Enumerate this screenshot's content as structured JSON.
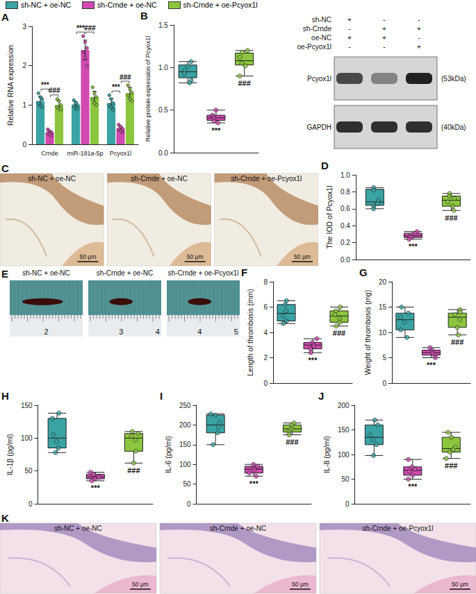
{
  "legend": [
    {
      "name": "sh-NC + oe-NC",
      "color": "#3aa3a3"
    },
    {
      "name": "sh-Crnde + oe-NC",
      "color": "#d04ab0"
    },
    {
      "name": "sh-Crnde + oe-Pcyox1l",
      "color": "#8cc63f"
    }
  ],
  "chart_data": [
    {
      "panel": "A",
      "type": "bar",
      "y_label": "Relative RNA expression",
      "categories": [
        "Crnde",
        "miR-181a-5p",
        "Pcyox1l"
      ],
      "ylim": [
        0,
        3
      ],
      "yticks": [
        0,
        1,
        2,
        3
      ],
      "grid": false,
      "series": [
        {
          "name": "sh-NC + oe-NC",
          "color": "#3aa3a3",
          "values": [
            1.1,
            1.0,
            1.05
          ],
          "errors": [
            0.12,
            0.08,
            0.12
          ],
          "points": [
            [
              1.3,
              1.2,
              1.15,
              1.05,
              0.98,
              0.95
            ],
            [
              1.12,
              1.05,
              1.0,
              0.98,
              0.92,
              0.9
            ],
            [
              1.25,
              1.15,
              1.05,
              1.0,
              0.95,
              0.88
            ]
          ]
        },
        {
          "name": "sh-Crnde + oe-NC",
          "color": "#d04ab0",
          "values": [
            0.3,
            2.4,
            0.4
          ],
          "errors": [
            0.05,
            0.25,
            0.06
          ],
          "points": [
            [
              0.38,
              0.33,
              0.3,
              0.28,
              0.25,
              0.22
            ],
            [
              2.75,
              2.6,
              2.45,
              2.35,
              2.2,
              2.0
            ],
            [
              0.5,
              0.45,
              0.4,
              0.38,
              0.35,
              0.3
            ]
          ]
        },
        {
          "name": "sh-Crnde + oe-Pcyox1l",
          "color": "#8cc63f",
          "values": [
            1.0,
            1.2,
            1.3
          ],
          "errors": [
            0.1,
            0.15,
            0.15
          ],
          "points": [
            [
              1.15,
              1.1,
              1.0,
              0.95,
              0.9,
              0.88
            ],
            [
              1.45,
              1.3,
              1.2,
              1.15,
              1.05,
              1.0
            ],
            [
              1.5,
              1.4,
              1.32,
              1.25,
              1.15,
              1.1
            ]
          ]
        }
      ],
      "annotations": [
        {
          "text": "***",
          "category": "Crnde",
          "between": [
            "sh-NC + oe-NC",
            "sh-Crnde + oe-NC"
          ]
        },
        {
          "text": "###",
          "category": "Crnde",
          "between": [
            "sh-Crnde + oe-NC",
            "sh-Crnde + oe-Pcyox1l"
          ]
        },
        {
          "text": "***",
          "category": "miR-181a-5p",
          "between": [
            "sh-NC + oe-NC",
            "sh-Crnde + oe-NC"
          ]
        },
        {
          "text": "###",
          "category": "miR-181a-5p",
          "between": [
            "sh-Crnde + oe-NC",
            "sh-Crnde + oe-Pcyox1l"
          ]
        },
        {
          "text": "***",
          "category": "Pcyox1l",
          "between": [
            "sh-NC + oe-NC",
            "sh-Crnde + oe-NC"
          ]
        },
        {
          "text": "###",
          "category": "Pcyox1l",
          "between": [
            "sh-Crnde + oe-NC",
            "sh-Crnde + oe-Pcyox1l"
          ]
        }
      ]
    },
    {
      "panel": "B",
      "type": "boxplot",
      "y_label": "Relative protein expression of Pcyox1l",
      "ylim": [
        0,
        1.5
      ],
      "yticks": [
        {
          "value": 0,
          "label": "0.0"
        },
        0.5,
        {
          "value": 1,
          "label": "1.0"
        },
        1.5
      ],
      "grid": false,
      "tick_labels": "y",
      "series": [
        {
          "name": "sh-NC + oe-NC",
          "color": "#3aa3a3",
          "box": [
            0.82,
            0.88,
            0.95,
            1.03,
            1.07
          ],
          "points": [
            1.07,
            1.02,
            0.97,
            0.93,
            0.85,
            0.82
          ]
        },
        {
          "name": "sh-Crnde + oe-NC",
          "color": "#d04ab0",
          "box": [
            0.35,
            0.38,
            0.41,
            0.44,
            0.5
          ],
          "points": [
            0.5,
            0.44,
            0.42,
            0.4,
            0.37,
            0.35
          ]
        },
        {
          "name": "sh-Crnde + oe-Pcyox1l",
          "color": "#8cc63f",
          "box": [
            0.9,
            1.03,
            1.08,
            1.17,
            1.2
          ],
          "points": [
            1.2,
            1.18,
            1.12,
            1.05,
            1.02,
            0.9
          ]
        }
      ],
      "annotations": [
        {
          "text": "***",
          "series": "sh-Crnde + oe-NC"
        },
        {
          "text": "###",
          "series": "sh-Crnde + oe-Pcyox1l"
        }
      ]
    },
    {
      "panel": "D",
      "type": "boxplot",
      "y_label": "The IOD of Pcyox1l",
      "ylim": [
        0,
        1
      ],
      "yticks": [
        {
          "value": 0,
          "label": "0.0"
        },
        0.2,
        0.4,
        0.6,
        0.8,
        {
          "value": 1,
          "label": "1.0"
        }
      ],
      "grid": false,
      "tick_labels": "y",
      "series": [
        {
          "name": "sh-NC + oe-NC",
          "color": "#3aa3a3",
          "box": [
            0.6,
            0.64,
            0.68,
            0.83,
            0.85
          ],
          "points": [
            0.85,
            0.82,
            0.7,
            0.66,
            0.63,
            0.6
          ]
        },
        {
          "name": "sh-Crnde + oe-NC",
          "color": "#d04ab0",
          "box": [
            0.24,
            0.26,
            0.28,
            0.31,
            0.33
          ],
          "points": [
            0.33,
            0.31,
            0.29,
            0.27,
            0.26,
            0.24
          ]
        },
        {
          "name": "sh-Crnde + oe-Pcyox1l",
          "color": "#8cc63f",
          "box": [
            0.58,
            0.63,
            0.7,
            0.75,
            0.78
          ],
          "points": [
            0.78,
            0.75,
            0.72,
            0.68,
            0.63,
            0.58
          ]
        }
      ],
      "annotations": [
        {
          "text": "***",
          "series": "sh-Crnde + oe-NC"
        },
        {
          "text": "###",
          "series": "sh-Crnde + oe-Pcyox1l"
        }
      ]
    },
    {
      "panel": "F",
      "type": "boxplot",
      "y_label": "Length of thrombosis (mm)",
      "ylim": [
        0,
        8
      ],
      "yticks": [
        0,
        2,
        4,
        6,
        8
      ],
      "grid": false,
      "tick_labels": "y",
      "series": [
        {
          "name": "sh-NC + oe-NC",
          "color": "#3aa3a3",
          "box": [
            4.7,
            4.9,
            5.5,
            6.2,
            6.5
          ],
          "points": [
            6.5,
            6.2,
            5.7,
            5.3,
            4.9,
            4.7
          ]
        },
        {
          "name": "sh-Crnde + oe-NC",
          "color": "#d04ab0",
          "box": [
            2.4,
            2.7,
            3.0,
            3.2,
            3.5
          ],
          "points": [
            3.5,
            3.2,
            3.0,
            2.9,
            2.7,
            2.4
          ]
        },
        {
          "name": "sh-Crnde + oe-Pcyox1l",
          "color": "#8cc63f",
          "box": [
            4.5,
            4.8,
            5.3,
            5.7,
            6.0
          ],
          "points": [
            6.0,
            5.7,
            5.4,
            5.1,
            4.8,
            4.5
          ]
        }
      ],
      "annotations": [
        {
          "text": "***",
          "series": "sh-Crnde + oe-NC"
        },
        {
          "text": "###",
          "series": "sh-Crnde + oe-Pcyox1l"
        }
      ]
    },
    {
      "panel": "G",
      "type": "boxplot",
      "y_label": "Weight of thrombosis (mg)",
      "ylim": [
        0,
        20
      ],
      "yticks": [
        0,
        5,
        10,
        15,
        20
      ],
      "grid": false,
      "tick_labels": "y",
      "series": [
        {
          "name": "sh-NC + oe-NC",
          "color": "#3aa3a3",
          "box": [
            9,
            10.5,
            12.5,
            13.8,
            15
          ],
          "points": [
            15,
            13.8,
            13,
            12,
            10.5,
            9
          ]
        },
        {
          "name": "sh-Crnde + oe-NC",
          "color": "#d04ab0",
          "box": [
            5,
            5.5,
            6,
            6.5,
            7
          ],
          "points": [
            7,
            6.5,
            6.1,
            5.8,
            5.5,
            5
          ]
        },
        {
          "name": "sh-Crnde + oe-Pcyox1l",
          "color": "#8cc63f",
          "box": [
            9.5,
            11,
            13,
            13.8,
            14.5
          ],
          "points": [
            14.5,
            14,
            13.5,
            12.5,
            11,
            9.5
          ]
        }
      ],
      "annotations": [
        {
          "text": "***",
          "series": "sh-Crnde + oe-NC"
        },
        {
          "text": "###",
          "series": "sh-Crnde + oe-Pcyox1l"
        }
      ]
    },
    {
      "panel": "H",
      "type": "boxplot",
      "y_label": "IL-1β (pg/ml)",
      "ylim": [
        0,
        150
      ],
      "yticks": [
        0,
        50,
        100,
        150
      ],
      "grid": false,
      "tick_labels": "y",
      "series": [
        {
          "name": "sh-NC + oe-NC",
          "color": "#3aa3a3",
          "box": [
            78,
            85,
            100,
            130,
            138
          ],
          "points": [
            138,
            130,
            105,
            95,
            85,
            78
          ]
        },
        {
          "name": "sh-Crnde + oe-NC",
          "color": "#d04ab0",
          "box": [
            35,
            38,
            41,
            45,
            48
          ],
          "points": [
            48,
            45,
            42,
            40,
            38,
            35
          ]
        },
        {
          "name": "sh-Crnde + oe-Pcyox1l",
          "color": "#8cc63f",
          "box": [
            62,
            80,
            100,
            107,
            110
          ],
          "points": [
            110,
            107,
            103,
            97,
            80,
            62
          ]
        }
      ],
      "annotations": [
        {
          "text": "***",
          "series": "sh-Crnde + oe-NC"
        },
        {
          "text": "###",
          "series": "sh-Crnde + oe-Pcyox1l"
        }
      ]
    },
    {
      "panel": "I",
      "type": "boxplot",
      "y_label": "IL-6 (pg/ml)",
      "ylim": [
        0,
        250
      ],
      "yticks": [
        0,
        50,
        100,
        150,
        200,
        250
      ],
      "grid": false,
      "tick_labels": "y",
      "series": [
        {
          "name": "sh-NC + oe-NC",
          "color": "#3aa3a3",
          "box": [
            150,
            180,
            200,
            225,
            228
          ],
          "points": [
            228,
            225,
            205,
            195,
            180,
            150
          ]
        },
        {
          "name": "sh-Crnde + oe-NC",
          "color": "#d04ab0",
          "box": [
            70,
            78,
            88,
            95,
            100
          ],
          "points": [
            100,
            95,
            90,
            86,
            78,
            70
          ]
        },
        {
          "name": "sh-Crnde + oe-Pcyox1l",
          "color": "#8cc63f",
          "box": [
            175,
            182,
            190,
            200,
            205
          ],
          "points": [
            205,
            200,
            192,
            188,
            182,
            175
          ]
        }
      ],
      "annotations": [
        {
          "text": "***",
          "series": "sh-Crnde + oe-NC"
        },
        {
          "text": "###",
          "series": "sh-Crnde + oe-Pcyox1l"
        }
      ]
    },
    {
      "panel": "J",
      "type": "boxplot",
      "y_label": "IL-8 (pg/ml)",
      "ylim": [
        0,
        200
      ],
      "yticks": [
        0,
        50,
        100,
        150,
        200
      ],
      "grid": false,
      "tick_labels": "y",
      "series": [
        {
          "name": "sh-NC + oe-NC",
          "color": "#3aa3a3",
          "box": [
            98,
            120,
            135,
            160,
            170
          ],
          "points": [
            170,
            160,
            140,
            130,
            120,
            98
          ]
        },
        {
          "name": "sh-Crnde + oe-NC",
          "color": "#d04ab0",
          "box": [
            50,
            58,
            68,
            75,
            90
          ],
          "points": [
            90,
            75,
            70,
            66,
            58,
            50
          ]
        },
        {
          "name": "sh-Crnde + oe-Pcyox1l",
          "color": "#8cc63f",
          "box": [
            92,
            105,
            112,
            135,
            145
          ],
          "points": [
            145,
            135,
            115,
            110,
            105,
            92
          ]
        }
      ],
      "annotations": [
        {
          "text": "***",
          "series": "sh-Crnde + oe-NC"
        },
        {
          "text": "###",
          "series": "sh-Crnde + oe-Pcyox1l"
        }
      ]
    }
  ],
  "images": [
    {
      "panel": "B",
      "type": "western_blot",
      "conditions": [
        {
          "label": "sh-NC",
          "signs": [
            "+",
            "-",
            "-"
          ]
        },
        {
          "label": "sh-Crnde",
          "signs": [
            "-",
            "+",
            "+"
          ]
        },
        {
          "label": "oe-NC",
          "signs": [
            "+",
            "+",
            "-"
          ]
        },
        {
          "label": "oe-Pcyox1l",
          "signs": [
            "-",
            "-",
            "+"
          ]
        }
      ],
      "bands": [
        {
          "protein": "Pcyox1l",
          "size": "(53kDa)"
        },
        {
          "protein": "GAPDH",
          "size": "(40kDa)"
        }
      ]
    },
    {
      "panel": "C",
      "type": "immunohistochemistry",
      "captions": [
        "sh-NC + oe-NC",
        "sh-Crnde + oe-NC",
        "sh-Crnde + oe-Pcyox1l"
      ],
      "scale_bar": "50 μm"
    },
    {
      "panel": "E",
      "type": "photo",
      "captions": [
        "sh-NC + oe-NC",
        "sh-Crnde + oe-NC",
        "sh-Crnde + oe-Pcyox1l"
      ],
      "ruler_labels": [
        [
          "2"
        ],
        [
          "3",
          "4"
        ],
        [
          "4",
          "5"
        ]
      ]
    },
    {
      "panel": "K",
      "type": "histology",
      "captions": [
        "sh-NC + oe-NC",
        "sh-Crnde + oe-NC",
        "sh-Crnde + oe-Pcyox1l"
      ],
      "scale_bar": "50 μm"
    }
  ]
}
